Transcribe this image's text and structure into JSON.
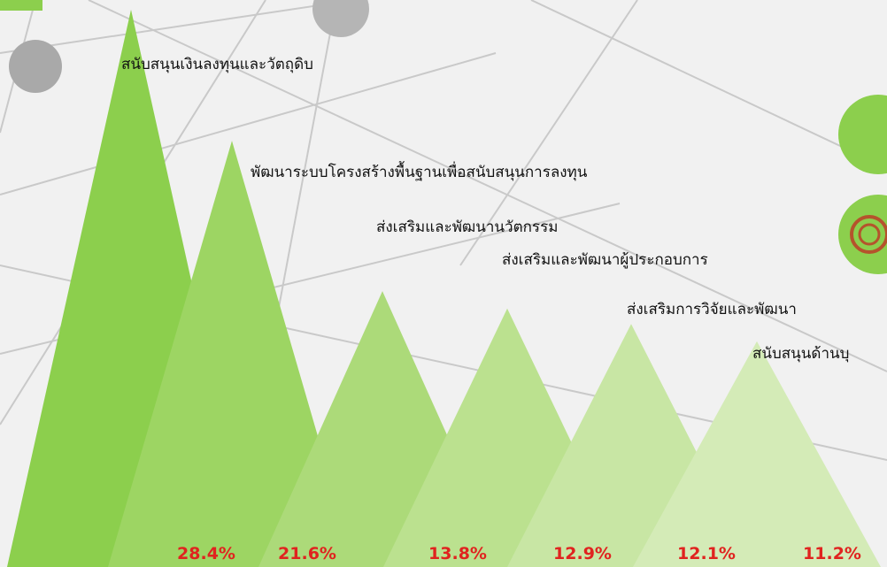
{
  "chart_data": {
    "type": "peak",
    "categories": [
      "สนับสนุนเงินลงทุนและวัตถุดิบ",
      "พัฒนาระบบโครงสร้างพื้นฐานเพื่อสนับสนุนการลงทุน",
      "ส่งเสริมและพัฒนานวัตกรรม",
      "ส่งเสริมและพัฒนาผู้ประกอบการ",
      "ส่งเสริมการวิจัยและพัฒนา",
      "สนับสนุนด้านบุ"
    ],
    "values": [
      28.4,
      21.6,
      13.8,
      12.9,
      12.1,
      11.2
    ],
    "value_labels": [
      "28.4%",
      "21.6%",
      "13.8%",
      "12.9%",
      "12.1%",
      "11.2%"
    ],
    "colors": [
      "#8ccf4d",
      "#9dd563",
      "#acda79",
      "#bbe18f",
      "#c8e6a4",
      "#d4ebb7"
    ]
  }
}
